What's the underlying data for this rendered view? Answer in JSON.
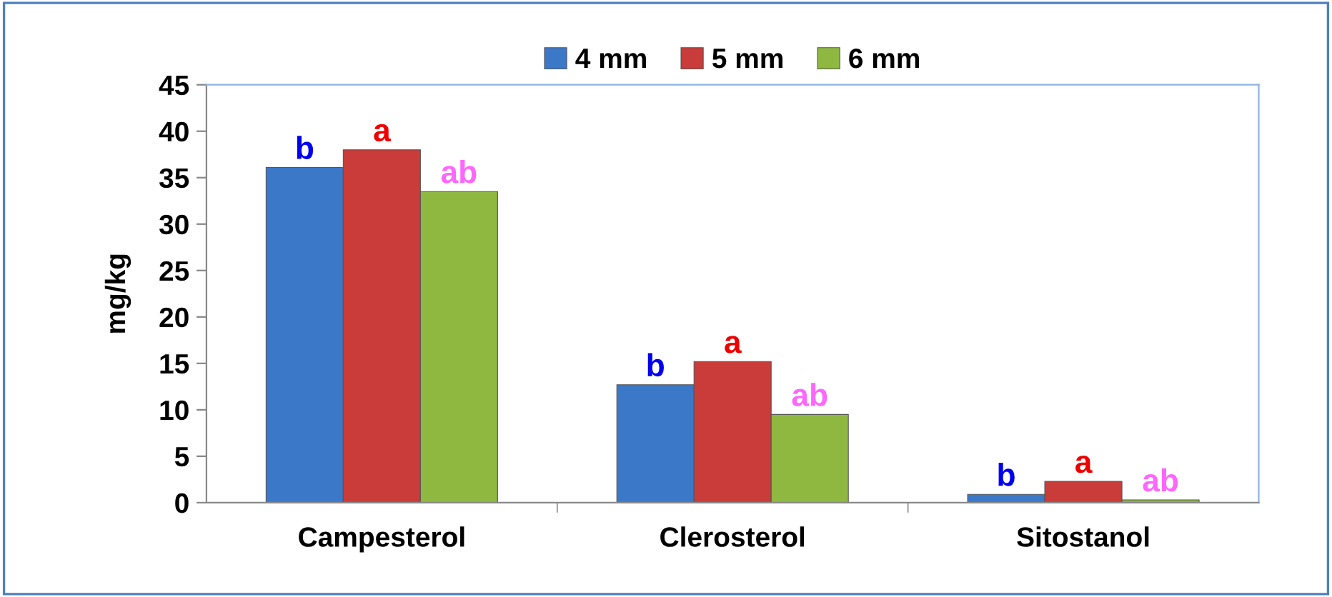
{
  "chart_data": {
    "type": "bar",
    "ylabel": "mg/kg",
    "categories": [
      "Campesterol",
      "Clerosterol",
      "Sitostanol"
    ],
    "series": [
      {
        "name": "4 mm",
        "color": "#3b78c8",
        "values": [
          36.1,
          12.7,
          0.9
        ],
        "value_labels": [
          "b",
          "b",
          "b"
        ]
      },
      {
        "name": "5 mm",
        "color": "#c93c3a",
        "values": [
          38.0,
          15.2,
          2.3
        ],
        "value_labels": [
          "a",
          "a",
          "a"
        ]
      },
      {
        "name": "6 mm",
        "color": "#8fb840",
        "values": [
          33.5,
          9.5,
          0.3
        ],
        "value_labels": [
          "ab",
          "ab",
          "ab"
        ]
      }
    ],
    "ylim": [
      0,
      45
    ],
    "yticks": [
      0,
      5,
      10,
      15,
      20,
      25,
      30,
      35,
      40,
      45
    ],
    "grid": false,
    "legend": "top"
  }
}
